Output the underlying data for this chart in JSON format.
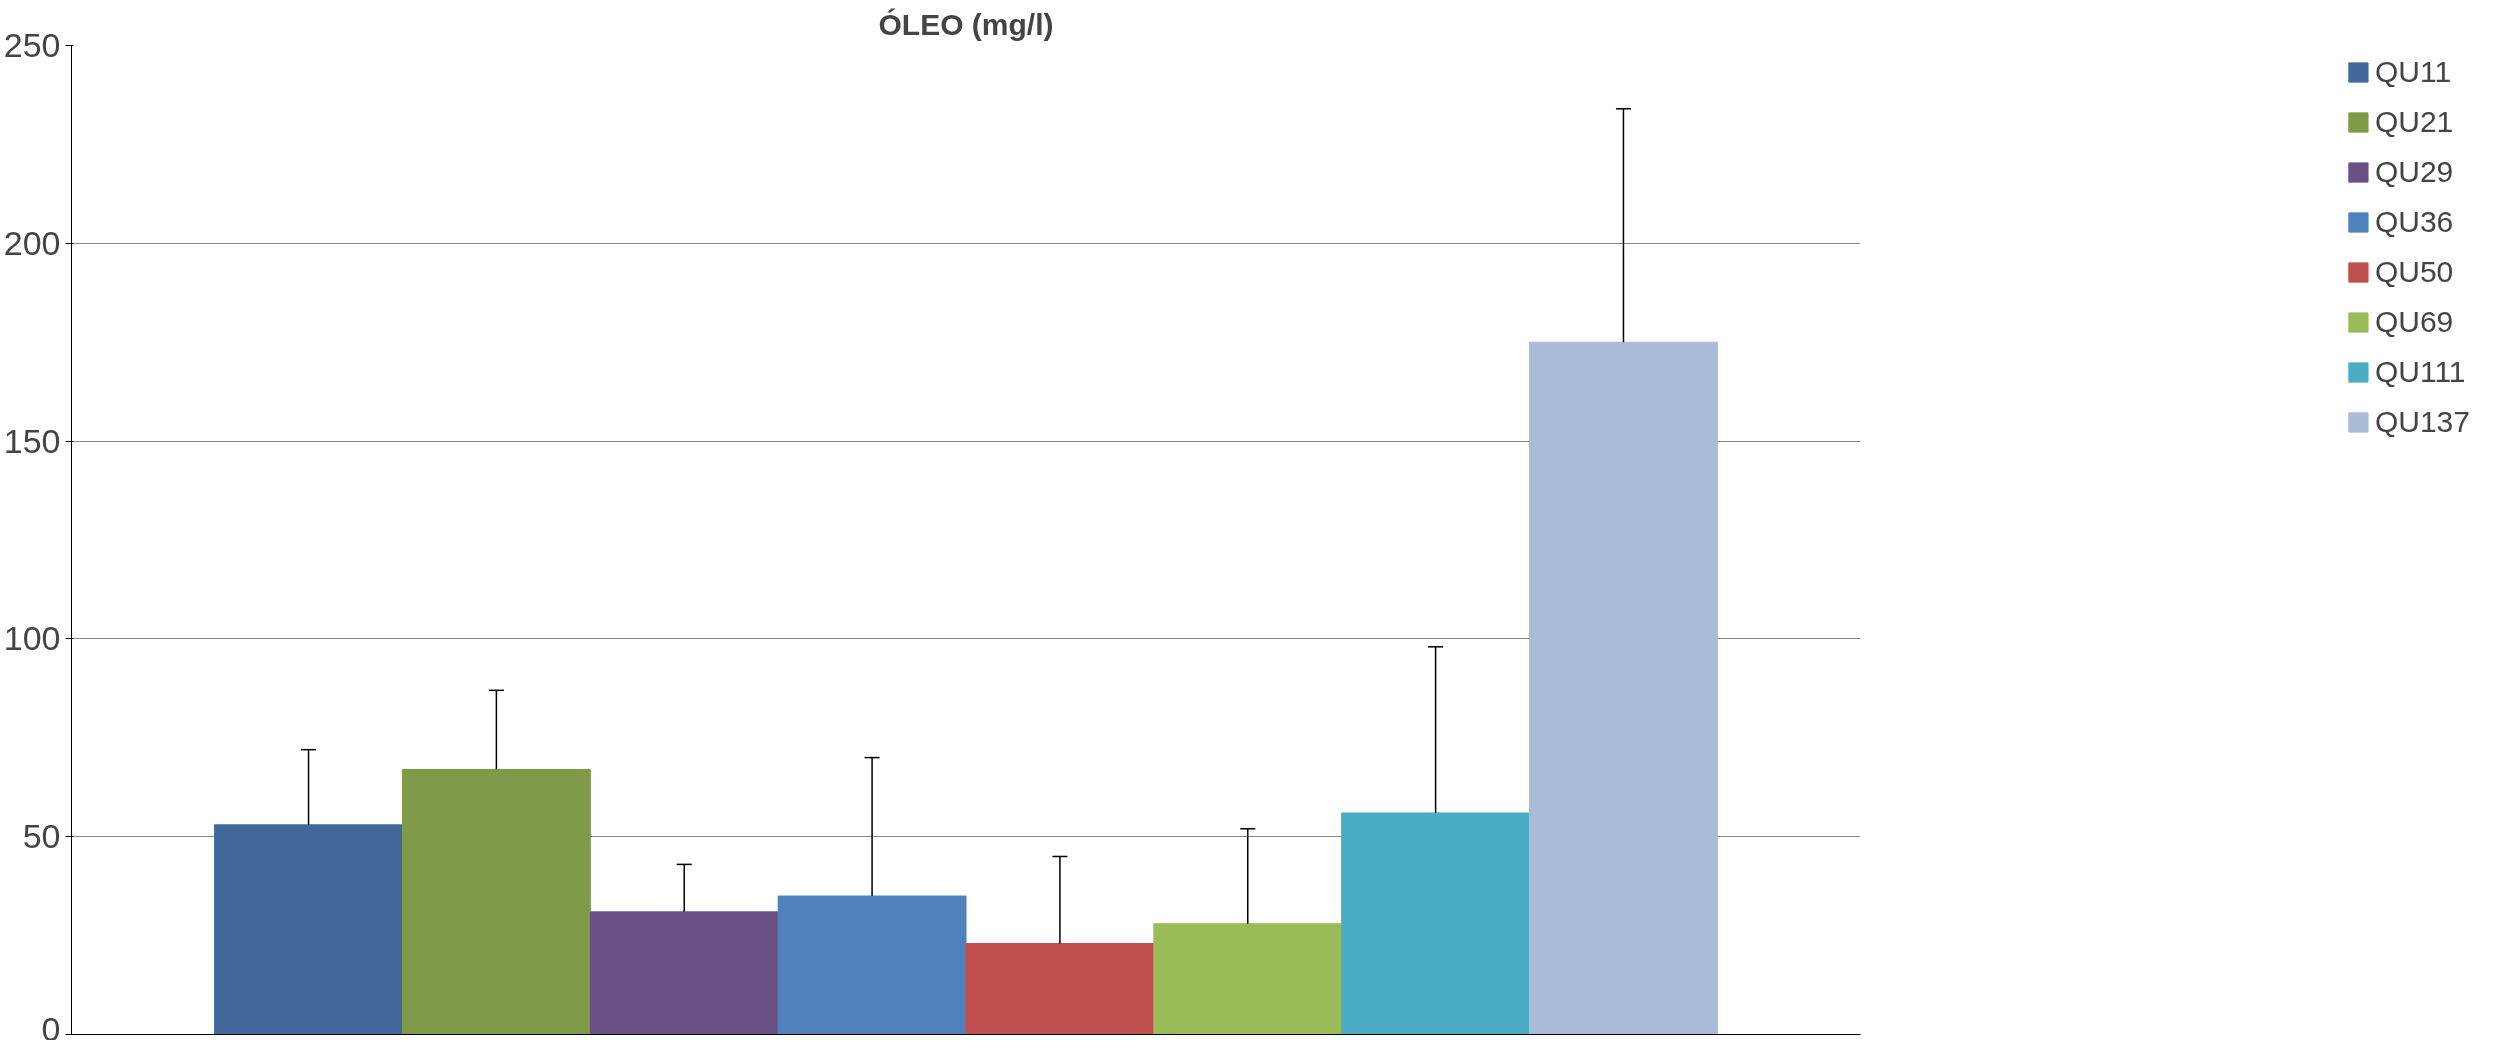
{
  "chart_data": {
    "type": "bar",
    "title": "ÓLEO (mg/l)",
    "categories": [
      null
    ],
    "series": [
      {
        "name": "QU11",
        "color": "#41699b",
        "values": [
          53
        ],
        "errors": [
          [
            53,
            72
          ]
        ]
      },
      {
        "name": "QU21",
        "color": "#7f9a48",
        "values": [
          67
        ],
        "errors": [
          [
            67,
            87
          ]
        ]
      },
      {
        "name": "QU29",
        "color": "#6a5185",
        "values": [
          31
        ],
        "errors": [
          [
            31,
            43
          ]
        ]
      },
      {
        "name": "QU36",
        "color": "#4f81bd",
        "values": [
          35
        ],
        "errors": [
          [
            35,
            70
          ]
        ]
      },
      {
        "name": "QU50",
        "color": "#c0504d",
        "values": [
          23
        ],
        "errors": [
          [
            23,
            45
          ]
        ]
      },
      {
        "name": "QU69",
        "color": "#9bbb59",
        "values": [
          28
        ],
        "errors": [
          [
            28,
            52
          ]
        ]
      },
      {
        "name": "QU111",
        "color": "#4bacc6",
        "values": [
          56
        ],
        "errors": [
          [
            56,
            98
          ]
        ]
      },
      {
        "name": "QU137",
        "color": "#aabbd7",
        "values": [
          175
        ],
        "errors": [
          [
            175,
            234
          ]
        ]
      }
    ],
    "ylim": [
      0,
      250
    ],
    "yticks": [
      0,
      50,
      100,
      150,
      200,
      250
    ],
    "grid": "y",
    "legend": "right"
  }
}
